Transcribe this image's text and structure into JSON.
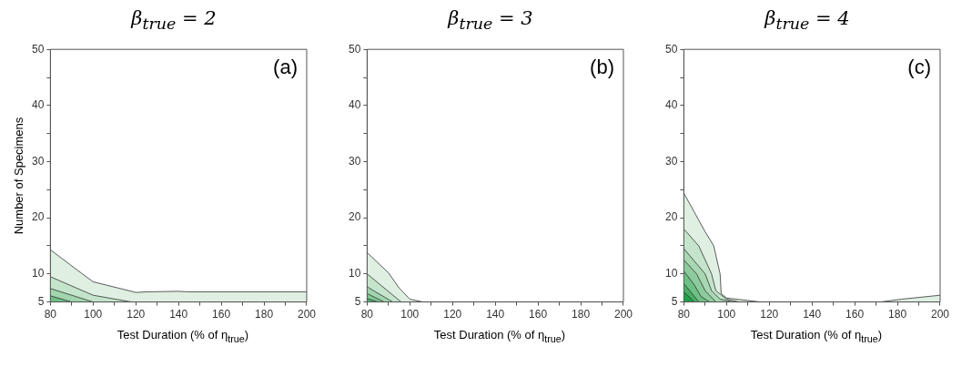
{
  "chart_data": [
    {
      "type": "area",
      "title": "β$_{true}$ = 2",
      "xlabel": "Test Duration (% of η$_{true}$)",
      "ylabel": "Number of Specimens",
      "annotations": [
        "(a)"
      ],
      "xlim": [
        80,
        200
      ],
      "ylim": [
        5,
        50
      ],
      "xticks": [
        80,
        {
          "value": 90,
          "label": null
        },
        100,
        {
          "value": 110,
          "label": null
        },
        120,
        {
          "value": 130,
          "label": null
        },
        140,
        {
          "value": 150,
          "label": null
        },
        160,
        {
          "value": 170,
          "label": null
        },
        180,
        {
          "value": 190,
          "label": null
        },
        200
      ],
      "yticks": [
        5,
        10,
        {
          "value": 15,
          "label": null
        },
        20,
        {
          "value": 25,
          "label": null
        },
        30,
        {
          "value": 35,
          "label": null
        },
        40,
        {
          "value": 45,
          "label": null
        },
        50
      ],
      "grid": false,
      "series": [
        {
          "color": "#dff0e2",
          "x": [
            80,
            95,
            100,
            120,
            125,
            140,
            145,
            200
          ],
          "values": [
            14.3,
            10,
            8.6,
            6.7,
            6.8,
            6.9,
            6.8,
            6.8
          ]
        },
        {
          "color": "#c4e5cb",
          "x": [
            80,
            100,
            118
          ],
          "values": [
            9.5,
            6.2,
            5
          ]
        },
        {
          "color": "#a0d5ad",
          "x": [
            80,
            100
          ],
          "values": [
            7.4,
            5
          ]
        },
        {
          "color": "#6cc084",
          "x": [
            80,
            90
          ],
          "values": [
            6.1,
            5
          ]
        }
      ]
    },
    {
      "type": "area",
      "title": "β$_{true}$ = 3",
      "xlabel": "Test Duration (% of η$_{true}$)",
      "annotations": [
        "(b)"
      ],
      "xlim": [
        80,
        200
      ],
      "ylim": [
        5,
        50
      ],
      "xticks": [
        80,
        {
          "value": 90,
          "label": null
        },
        100,
        {
          "value": 110,
          "label": null
        },
        120,
        {
          "value": 130,
          "label": null
        },
        140,
        {
          "value": 150,
          "label": null
        },
        160,
        {
          "value": 170,
          "label": null
        },
        180,
        {
          "value": 190,
          "label": null
        },
        200
      ],
      "yticks": [
        5,
        10,
        {
          "value": 15,
          "label": null
        },
        20,
        {
          "value": 25,
          "label": null
        },
        30,
        {
          "value": 35,
          "label": null
        },
        40,
        {
          "value": 45,
          "label": null
        },
        50
      ],
      "grid": false,
      "series": [
        {
          "color": "#dff0e2",
          "x": [
            80,
            90,
            95,
            100,
            105,
            106
          ],
          "values": [
            13.8,
            10.2,
            7.5,
            5.5,
            5.1,
            5
          ]
        },
        {
          "color": "#c4e5cb",
          "x": [
            80,
            96
          ],
          "values": [
            10,
            5
          ]
        },
        {
          "color": "#a0d5ad",
          "x": [
            80,
            92
          ],
          "values": [
            7.7,
            5
          ]
        },
        {
          "color": "#7fc692",
          "x": [
            80,
            88
          ],
          "values": [
            6.5,
            5
          ]
        },
        {
          "color": "#4fb46c",
          "x": [
            80,
            85
          ],
          "values": [
            5.6,
            5
          ]
        }
      ]
    },
    {
      "type": "area",
      "title": "β$_{true}$ = 4",
      "xlabel": "Test Duration (% of η$_{true}$)",
      "annotations": [
        "(c)"
      ],
      "xlim": [
        80,
        200
      ],
      "ylim": [
        5,
        50
      ],
      "xticks": [
        80,
        {
          "value": 90,
          "label": null
        },
        100,
        {
          "value": 110,
          "label": null
        },
        120,
        {
          "value": 130,
          "label": null
        },
        140,
        {
          "value": 150,
          "label": null
        },
        160,
        {
          "value": 170,
          "label": null
        },
        180,
        {
          "value": 190,
          "label": null
        },
        200
      ],
      "yticks": [
        5,
        10,
        {
          "value": 15,
          "label": null
        },
        20,
        {
          "value": 25,
          "label": null
        },
        30,
        {
          "value": 35,
          "label": null
        },
        40,
        {
          "value": 45,
          "label": null
        },
        50
      ],
      "grid": false,
      "series": [
        {
          "color": "#dff0e2",
          "x": [
            80,
            90,
            94,
            97,
            97.5,
            100,
            116
          ],
          "values": [
            24.4,
            17.5,
            15,
            10,
            6.5,
            5.7,
            5
          ]
        },
        {
          "color": "#dff0e2",
          "x": [
            172,
            182,
            200
          ],
          "values": [
            5,
            5.5,
            6.2
          ]
        },
        {
          "color": "#c4e5cb",
          "x": [
            80,
            87,
            93,
            95,
            100,
            106
          ],
          "values": [
            18,
            15,
            10,
            7,
            5.5,
            5
          ]
        },
        {
          "color": "#a8d8b3",
          "x": [
            80,
            90,
            93,
            97,
            103
          ],
          "values": [
            14.5,
            10,
            7,
            5.5,
            5
          ]
        },
        {
          "color": "#8ccc9c",
          "x": [
            80,
            86,
            90,
            95
          ],
          "values": [
            12.5,
            10,
            7,
            5
          ]
        },
        {
          "color": "#6cc084",
          "x": [
            80,
            85,
            88,
            92
          ],
          "values": [
            10.5,
            8,
            6,
            5
          ]
        },
        {
          "color": "#45b065",
          "x": [
            80,
            87
          ],
          "values": [
            8.3,
            5
          ]
        },
        {
          "color": "#20a04a",
          "x": [
            80,
            85
          ],
          "values": [
            6.8,
            5
          ]
        }
      ]
    }
  ]
}
